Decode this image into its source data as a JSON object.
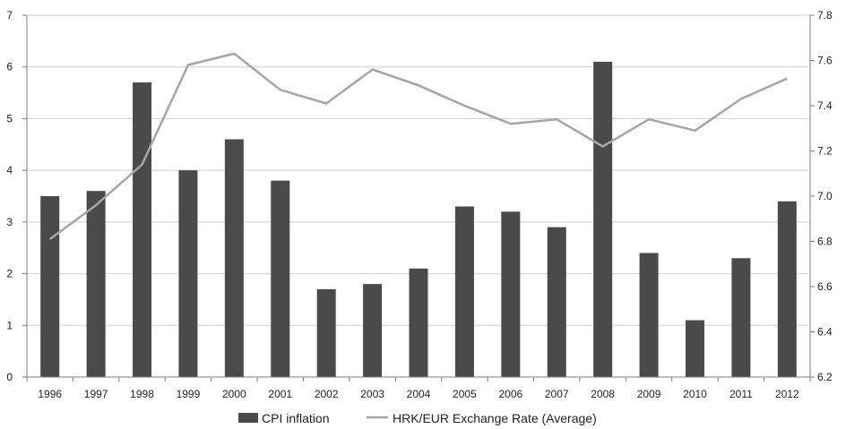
{
  "chart_data": {
    "type": "bar",
    "categories": [
      "1996",
      "1997",
      "1998",
      "1999",
      "2000",
      "2001",
      "2002",
      "2003",
      "2004",
      "2005",
      "2006",
      "2007",
      "2008",
      "2009",
      "2010",
      "2011",
      "2012"
    ],
    "series": [
      {
        "name": "CPI inflation",
        "type": "bar",
        "axis": "left",
        "color": "#4a4a4a",
        "values": [
          3.5,
          3.6,
          5.7,
          4.0,
          4.6,
          3.8,
          1.7,
          1.8,
          2.1,
          3.3,
          3.2,
          2.9,
          6.1,
          2.4,
          1.1,
          2.3,
          3.4
        ]
      },
      {
        "name": "HRK/EUR Exchange Rate (Average)",
        "type": "line",
        "axis": "right",
        "color": "#a6a6a6",
        "values": [
          6.81,
          6.96,
          7.14,
          7.58,
          7.63,
          7.47,
          7.41,
          7.56,
          7.49,
          7.4,
          7.32,
          7.34,
          7.22,
          7.34,
          7.29,
          7.43,
          7.52
        ]
      }
    ],
    "y_left": {
      "range": [
        0,
        7
      ],
      "ticks": [
        "0",
        "1",
        "2",
        "3",
        "4",
        "5",
        "6",
        "7"
      ]
    },
    "y_right": {
      "range": [
        6.2,
        7.8
      ],
      "ticks": [
        "6.2",
        "6.4",
        "6.6",
        "6.8",
        "7.0",
        "7.2",
        "7.4",
        "7.6",
        "7.8"
      ]
    },
    "title": "",
    "xlabel": "",
    "ylabel": "",
    "grid": true,
    "legend_position": "bottom"
  }
}
